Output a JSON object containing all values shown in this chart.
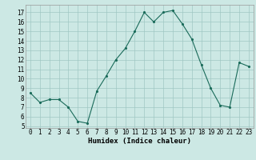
{
  "x": [
    0,
    1,
    2,
    3,
    4,
    5,
    6,
    7,
    8,
    9,
    10,
    11,
    12,
    13,
    14,
    15,
    16,
    17,
    18,
    19,
    20,
    21,
    22,
    23
  ],
  "y": [
    8.5,
    7.5,
    7.8,
    7.8,
    7.0,
    5.5,
    5.3,
    8.7,
    10.3,
    12.0,
    13.2,
    15.0,
    17.0,
    16.0,
    17.0,
    17.2,
    15.8,
    14.2,
    11.5,
    9.0,
    7.2,
    7.0,
    11.7,
    11.3
  ],
  "xlabel": "Humidex (Indice chaleur)",
  "xlim": [
    -0.5,
    23.5
  ],
  "ylim": [
    4.8,
    17.8
  ],
  "yticks": [
    5,
    6,
    7,
    8,
    9,
    10,
    11,
    12,
    13,
    14,
    15,
    16,
    17
  ],
  "xticks": [
    0,
    1,
    2,
    3,
    4,
    5,
    6,
    7,
    8,
    9,
    10,
    11,
    12,
    13,
    14,
    15,
    16,
    17,
    18,
    19,
    20,
    21,
    22,
    23
  ],
  "line_color": "#1a6b5a",
  "marker_color": "#1a6b5a",
  "bg_color": "#cce8e4",
  "grid_color": "#a0c8c4",
  "label_fontsize": 6.5,
  "tick_fontsize": 5.5
}
